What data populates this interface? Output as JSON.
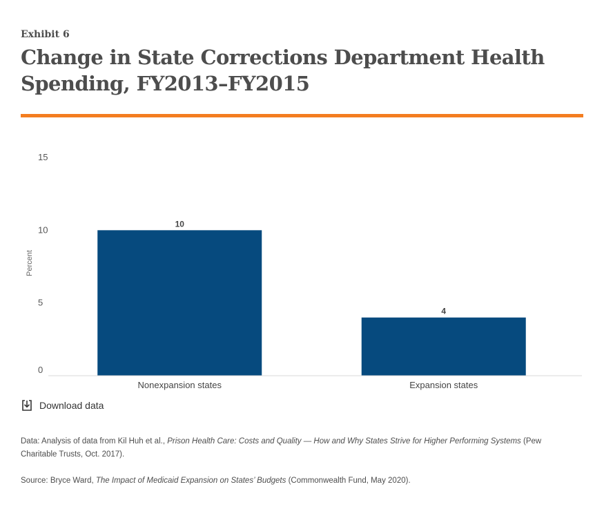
{
  "header": {
    "exhibit": "Exhibit 6",
    "title": "Change in State Corrections Department Health Spending, FY2013–FY2015"
  },
  "colors": {
    "accent_rule": "#f47d20",
    "bar": "#064a7e",
    "text": "#4d4d4d"
  },
  "chart_data": {
    "type": "bar",
    "title": "",
    "xlabel": "",
    "ylabel": "Percent",
    "categories": [
      "Nonexpansion states",
      "Expansion states"
    ],
    "values": [
      10,
      4
    ],
    "data_labels": [
      "10",
      "4"
    ],
    "ylim": [
      0,
      15
    ],
    "yticks": [
      0,
      5,
      10,
      15
    ],
    "grid": false,
    "legend": "none"
  },
  "download": {
    "icon": "download-icon",
    "label": "Download data"
  },
  "notes": {
    "data_prefix": "Data: Analysis of data from Kil Huh et al., ",
    "data_title": "Prison Health Care: Costs and Quality — How and Why States Strive for Higher Performing Systems",
    "data_suffix": " (Pew Charitable Trusts, Oct. 2017).",
    "source_prefix": "Source:  Bryce Ward, ",
    "source_title": "The Impact of Medicaid Expansion on States’ Budgets",
    "source_suffix": " (Commonwealth Fund, May 2020)."
  }
}
